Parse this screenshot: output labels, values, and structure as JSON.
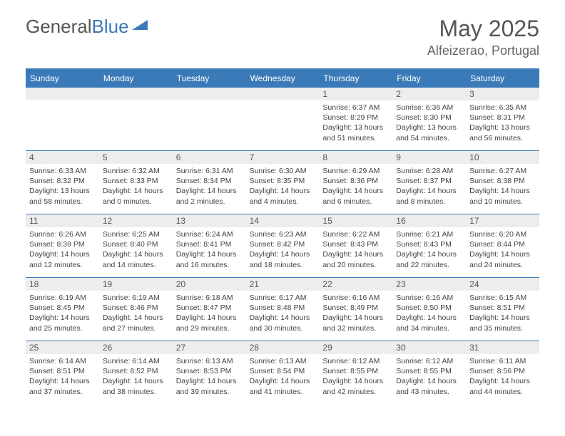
{
  "logo": {
    "text_a": "General",
    "text_b": "Blue"
  },
  "title": "May 2025",
  "location": "Alfeizerao, Portugal",
  "colors": {
    "accent": "#3b7ab8",
    "head_bg": "#ededed",
    "text": "#555",
    "body": "#444"
  },
  "day_headers": [
    "Sunday",
    "Monday",
    "Tuesday",
    "Wednesday",
    "Thursday",
    "Friday",
    "Saturday"
  ],
  "weeks": [
    [
      null,
      null,
      null,
      null,
      {
        "d": "1",
        "sr": "6:37 AM",
        "ss": "8:29 PM",
        "dl": "13 hours and 51 minutes."
      },
      {
        "d": "2",
        "sr": "6:36 AM",
        "ss": "8:30 PM",
        "dl": "13 hours and 54 minutes."
      },
      {
        "d": "3",
        "sr": "6:35 AM",
        "ss": "8:31 PM",
        "dl": "13 hours and 56 minutes."
      }
    ],
    [
      {
        "d": "4",
        "sr": "6:33 AM",
        "ss": "8:32 PM",
        "dl": "13 hours and 58 minutes."
      },
      {
        "d": "5",
        "sr": "6:32 AM",
        "ss": "8:33 PM",
        "dl": "14 hours and 0 minutes."
      },
      {
        "d": "6",
        "sr": "6:31 AM",
        "ss": "8:34 PM",
        "dl": "14 hours and 2 minutes."
      },
      {
        "d": "7",
        "sr": "6:30 AM",
        "ss": "8:35 PM",
        "dl": "14 hours and 4 minutes."
      },
      {
        "d": "8",
        "sr": "6:29 AM",
        "ss": "8:36 PM",
        "dl": "14 hours and 6 minutes."
      },
      {
        "d": "9",
        "sr": "6:28 AM",
        "ss": "8:37 PM",
        "dl": "14 hours and 8 minutes."
      },
      {
        "d": "10",
        "sr": "6:27 AM",
        "ss": "8:38 PM",
        "dl": "14 hours and 10 minutes."
      }
    ],
    [
      {
        "d": "11",
        "sr": "6:26 AM",
        "ss": "8:39 PM",
        "dl": "14 hours and 12 minutes."
      },
      {
        "d": "12",
        "sr": "6:25 AM",
        "ss": "8:40 PM",
        "dl": "14 hours and 14 minutes."
      },
      {
        "d": "13",
        "sr": "6:24 AM",
        "ss": "8:41 PM",
        "dl": "14 hours and 16 minutes."
      },
      {
        "d": "14",
        "sr": "6:23 AM",
        "ss": "8:42 PM",
        "dl": "14 hours and 18 minutes."
      },
      {
        "d": "15",
        "sr": "6:22 AM",
        "ss": "8:43 PM",
        "dl": "14 hours and 20 minutes."
      },
      {
        "d": "16",
        "sr": "6:21 AM",
        "ss": "8:43 PM",
        "dl": "14 hours and 22 minutes."
      },
      {
        "d": "17",
        "sr": "6:20 AM",
        "ss": "8:44 PM",
        "dl": "14 hours and 24 minutes."
      }
    ],
    [
      {
        "d": "18",
        "sr": "6:19 AM",
        "ss": "8:45 PM",
        "dl": "14 hours and 25 minutes."
      },
      {
        "d": "19",
        "sr": "6:19 AM",
        "ss": "8:46 PM",
        "dl": "14 hours and 27 minutes."
      },
      {
        "d": "20",
        "sr": "6:18 AM",
        "ss": "8:47 PM",
        "dl": "14 hours and 29 minutes."
      },
      {
        "d": "21",
        "sr": "6:17 AM",
        "ss": "8:48 PM",
        "dl": "14 hours and 30 minutes."
      },
      {
        "d": "22",
        "sr": "6:16 AM",
        "ss": "8:49 PM",
        "dl": "14 hours and 32 minutes."
      },
      {
        "d": "23",
        "sr": "6:16 AM",
        "ss": "8:50 PM",
        "dl": "14 hours and 34 minutes."
      },
      {
        "d": "24",
        "sr": "6:15 AM",
        "ss": "8:51 PM",
        "dl": "14 hours and 35 minutes."
      }
    ],
    [
      {
        "d": "25",
        "sr": "6:14 AM",
        "ss": "8:51 PM",
        "dl": "14 hours and 37 minutes."
      },
      {
        "d": "26",
        "sr": "6:14 AM",
        "ss": "8:52 PM",
        "dl": "14 hours and 38 minutes."
      },
      {
        "d": "27",
        "sr": "6:13 AM",
        "ss": "8:53 PM",
        "dl": "14 hours and 39 minutes."
      },
      {
        "d": "28",
        "sr": "6:13 AM",
        "ss": "8:54 PM",
        "dl": "14 hours and 41 minutes."
      },
      {
        "d": "29",
        "sr": "6:12 AM",
        "ss": "8:55 PM",
        "dl": "14 hours and 42 minutes."
      },
      {
        "d": "30",
        "sr": "6:12 AM",
        "ss": "8:55 PM",
        "dl": "14 hours and 43 minutes."
      },
      {
        "d": "31",
        "sr": "6:11 AM",
        "ss": "8:56 PM",
        "dl": "14 hours and 44 minutes."
      }
    ]
  ],
  "labels": {
    "sunrise": "Sunrise:",
    "sunset": "Sunset:",
    "daylight": "Daylight:"
  }
}
